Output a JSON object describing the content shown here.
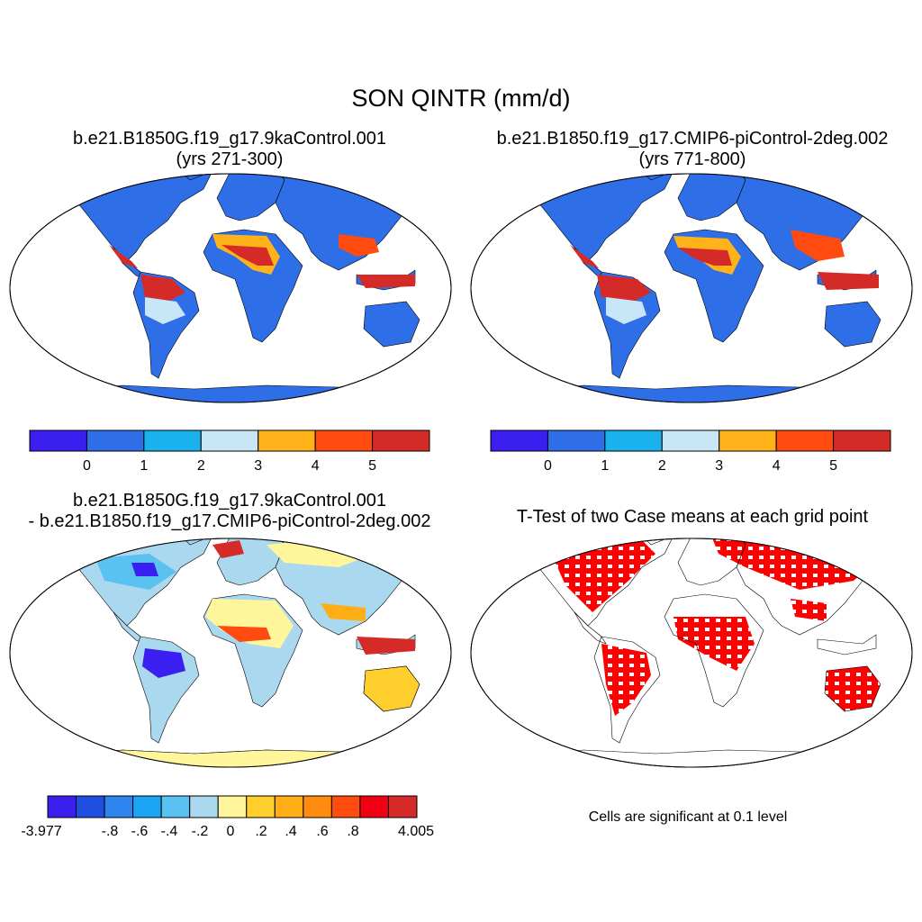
{
  "title": "SON QINTR (mm/d)",
  "panels": [
    {
      "title_line1": "b.e21.B1850G.f19_g17.9kaControl.001",
      "title_line2": "(yrs 271-300)",
      "colorbar": {
        "colors": [
          "#3a1ff0",
          "#2e6ee6",
          "#1bb1ee",
          "#c8e6f7",
          "#ffb21a",
          "#ff4a10",
          "#d42b28"
        ],
        "labels": [
          "0",
          "1",
          "2",
          "3",
          "4",
          "5"
        ]
      }
    },
    {
      "title_line1": "b.e21.B1850.f19_g17.CMIP6-piControl-2deg.002",
      "title_line2": "(yrs 771-800)",
      "colorbar": {
        "colors": [
          "#3a1ff0",
          "#2e6ee6",
          "#1bb1ee",
          "#c8e6f7",
          "#ffb21a",
          "#ff4a10",
          "#d42b28"
        ],
        "labels": [
          "0",
          "1",
          "2",
          "3",
          "4",
          "5"
        ]
      }
    },
    {
      "title_line1": "b.e21.B1850G.f19_g17.9kaControl.001",
      "title_line2": "- b.e21.B1850.f19_g17.CMIP6-piControl-2deg.002",
      "colorbar": {
        "colors": [
          "#3a1ff0",
          "#1f4fe0",
          "#2e85ee",
          "#1aa6f2",
          "#5ac2f0",
          "#aad8ee",
          "#fff59a",
          "#ffcf2e",
          "#ffae16",
          "#ff8c10",
          "#ff4a10",
          "#f00010",
          "#d42b28"
        ],
        "labels": [
          "-3.977",
          "-.8",
          "-.6",
          "-.4",
          "-.2",
          "0",
          ".2",
          ".4",
          ".6",
          ".8",
          "4.005"
        ]
      }
    },
    {
      "title_line1": "T-Test of two Case means at each grid point",
      "footnote": "Cells are significant at 0.1 level"
    }
  ],
  "colors": {
    "ocean": "#ffffff",
    "land_base_abs": "#2e6ee6",
    "land_base_diff": "#aad8ee",
    "antarctica_diff": "#fff59a",
    "significant": "#ff0000"
  }
}
